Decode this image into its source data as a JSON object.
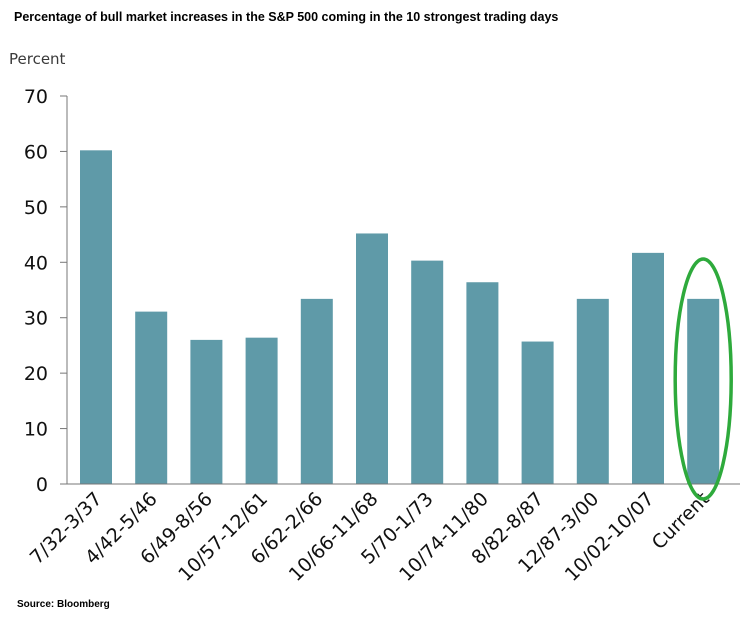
{
  "chart_data": {
    "type": "bar",
    "title": "Percentage of bull market increases in the S&P 500 coming in the 10 strongest trading days",
    "ylabel": "Percent",
    "xlabel": "",
    "ylim": [
      0,
      70
    ],
    "yticks": [
      0,
      10,
      20,
      30,
      40,
      50,
      60,
      70
    ],
    "categories": [
      "7/32-3/37",
      "4/42-5/46",
      "6/49-8/56",
      "10/57-12/61",
      "6/62-2/66",
      "10/66-11/68",
      "5/70-1/73",
      "10/74-11/80",
      "8/82-8/87",
      "12/87-3/00",
      "10/02-10/07",
      "Current"
    ],
    "values": [
      60.2,
      31.1,
      26.0,
      26.4,
      33.4,
      45.2,
      40.3,
      36.4,
      25.7,
      33.4,
      41.7,
      33.4
    ],
    "bar_color": "#5f9aa8",
    "highlight": {
      "category": "Current",
      "shape": "ellipse",
      "color": "#2eaa3c"
    },
    "grid": false,
    "source": "Source: Bloomberg"
  }
}
